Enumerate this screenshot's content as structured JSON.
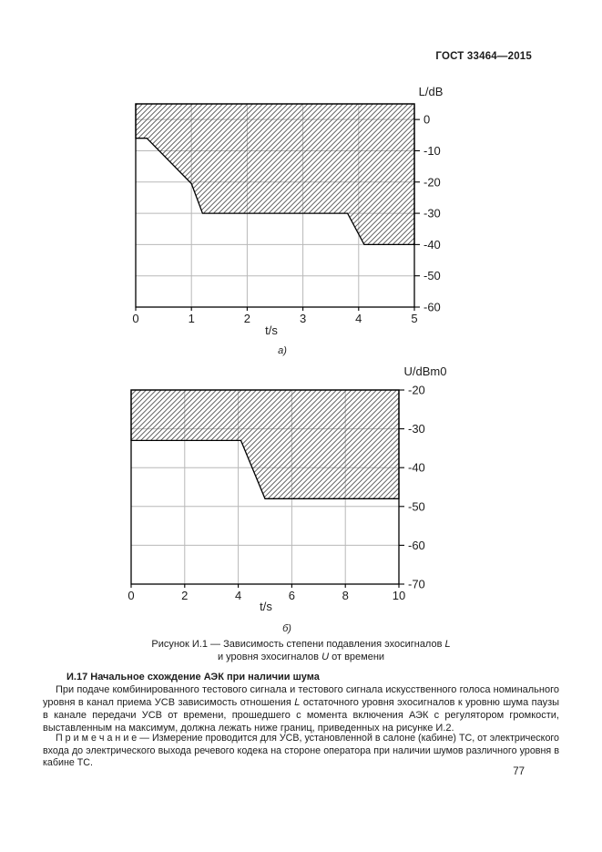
{
  "header": {
    "title": "ГОСТ 33464—2015"
  },
  "page_number": "77",
  "colors": {
    "grid": "#b8b8b8",
    "hatch": "#4b4b4b",
    "line": "#000000",
    "text": "#1c1c1c"
  },
  "chart_data": [
    {
      "type": "area",
      "panel_label": "а)",
      "xlabel": "t/s",
      "ylabel": "L/dB",
      "xlim": [
        0,
        5
      ],
      "ylim": [
        -60,
        5
      ],
      "x_ticks": [
        0,
        1,
        2,
        3,
        4,
        5
      ],
      "y_ticks": [
        0,
        -10,
        -20,
        -30,
        -40,
        -50,
        -60
      ],
      "grid": true,
      "hatched_region": "between boundary line and chart top",
      "boundary_points": [
        [
          0,
          -6
        ],
        [
          0.2,
          -6
        ],
        [
          1,
          -20.5
        ],
        [
          1.2,
          -30
        ],
        [
          3.8,
          -30
        ],
        [
          4.1,
          -40
        ],
        [
          5,
          -40
        ]
      ]
    },
    {
      "type": "area",
      "panel_label": "б)",
      "xlabel": "t/s",
      "ylabel": "U/dBm0",
      "xlim": [
        0,
        10
      ],
      "ylim": [
        -70,
        -20
      ],
      "x_ticks": [
        0,
        2,
        4,
        6,
        8,
        10
      ],
      "y_ticks": [
        -20,
        -30,
        -40,
        -50,
        -60,
        -70
      ],
      "grid": true,
      "hatched_region": "between boundary line and chart top",
      "boundary_points": [
        [
          0,
          -33
        ],
        [
          4.1,
          -33
        ],
        [
          5,
          -48
        ],
        [
          10,
          -48
        ]
      ]
    }
  ],
  "caption": {
    "line1_pre": "Рисунок И.1 — Зависимость степени подавления эхосигналов",
    "line1_var": "L",
    "line2_pre": "и уровня эхосигналов",
    "line2_var": "U",
    "line2_post": "от времени"
  },
  "section": {
    "heading": "И.17 Начальное схождение АЭК при наличии шума",
    "para_pre": "При подаче комбинированного тестового сигнала и тестового сигнала искусственного голоса номинального уровня в канал приема УСВ зависимость отношения",
    "para_var": "L",
    "para_post": "остаточного уровня эхосигналов к уровню шума паузы в канале передачи УСВ от времени, прошедшего с момента включения АЭК с регулятором громкости, выставленным на максимум, должна лежать ниже границ, приведенных на рисунке И.2."
  },
  "note": {
    "label": "П р и м е ч а н и е",
    "body": "— Измерение проводится для УСВ, установленной в салоне (кабине) ТС, от электрического входа до электрического выхода речевого кодека на стороне оператора при наличии шумов различного уровня в кабине ТС."
  }
}
